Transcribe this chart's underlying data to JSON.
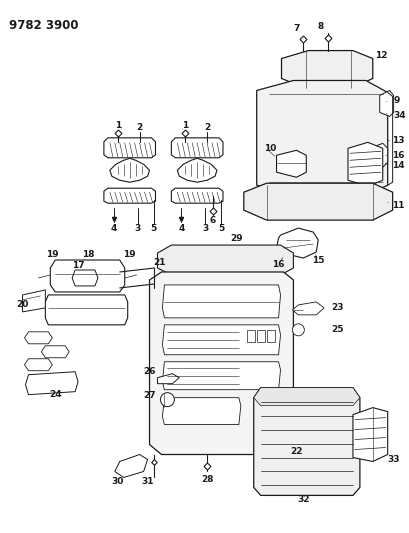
{
  "title": "9782 3900",
  "bg_color": "#ffffff",
  "line_color": "#1a1a1a",
  "title_fontsize": 8.5,
  "label_fontsize": 6.5,
  "figsize": [
    4.1,
    5.33
  ],
  "dpi": 100
}
